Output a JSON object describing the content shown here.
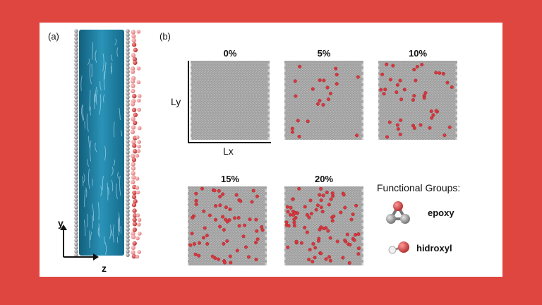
{
  "panel_a": {
    "label": "(a)",
    "axis_y": "y",
    "axis_z": "z"
  },
  "panel_b": {
    "label": "(b)",
    "dim_y": "Ly",
    "dim_x": "Lx",
    "sheets": [
      {
        "label": "0%",
        "fraction": 0.0
      },
      {
        "label": "5%",
        "fraction": 0.05
      },
      {
        "label": "10%",
        "fraction": 0.1
      },
      {
        "label": "15%",
        "fraction": 0.15
      },
      {
        "label": "20%",
        "fraction": 0.2
      }
    ]
  },
  "legend": {
    "title": "Functional Groups:",
    "items": [
      {
        "name": "epoxy",
        "icon": "epoxy-molecule-icon"
      },
      {
        "name": "hidroxyl",
        "icon": "hydroxyl-molecule-icon"
      }
    ]
  },
  "colors": {
    "background": "#e04640",
    "water": "#1b7fa3",
    "carbon": "#b5b5b5",
    "oxygen": "#d9363e",
    "hydrogen": "#f2f2f2"
  }
}
